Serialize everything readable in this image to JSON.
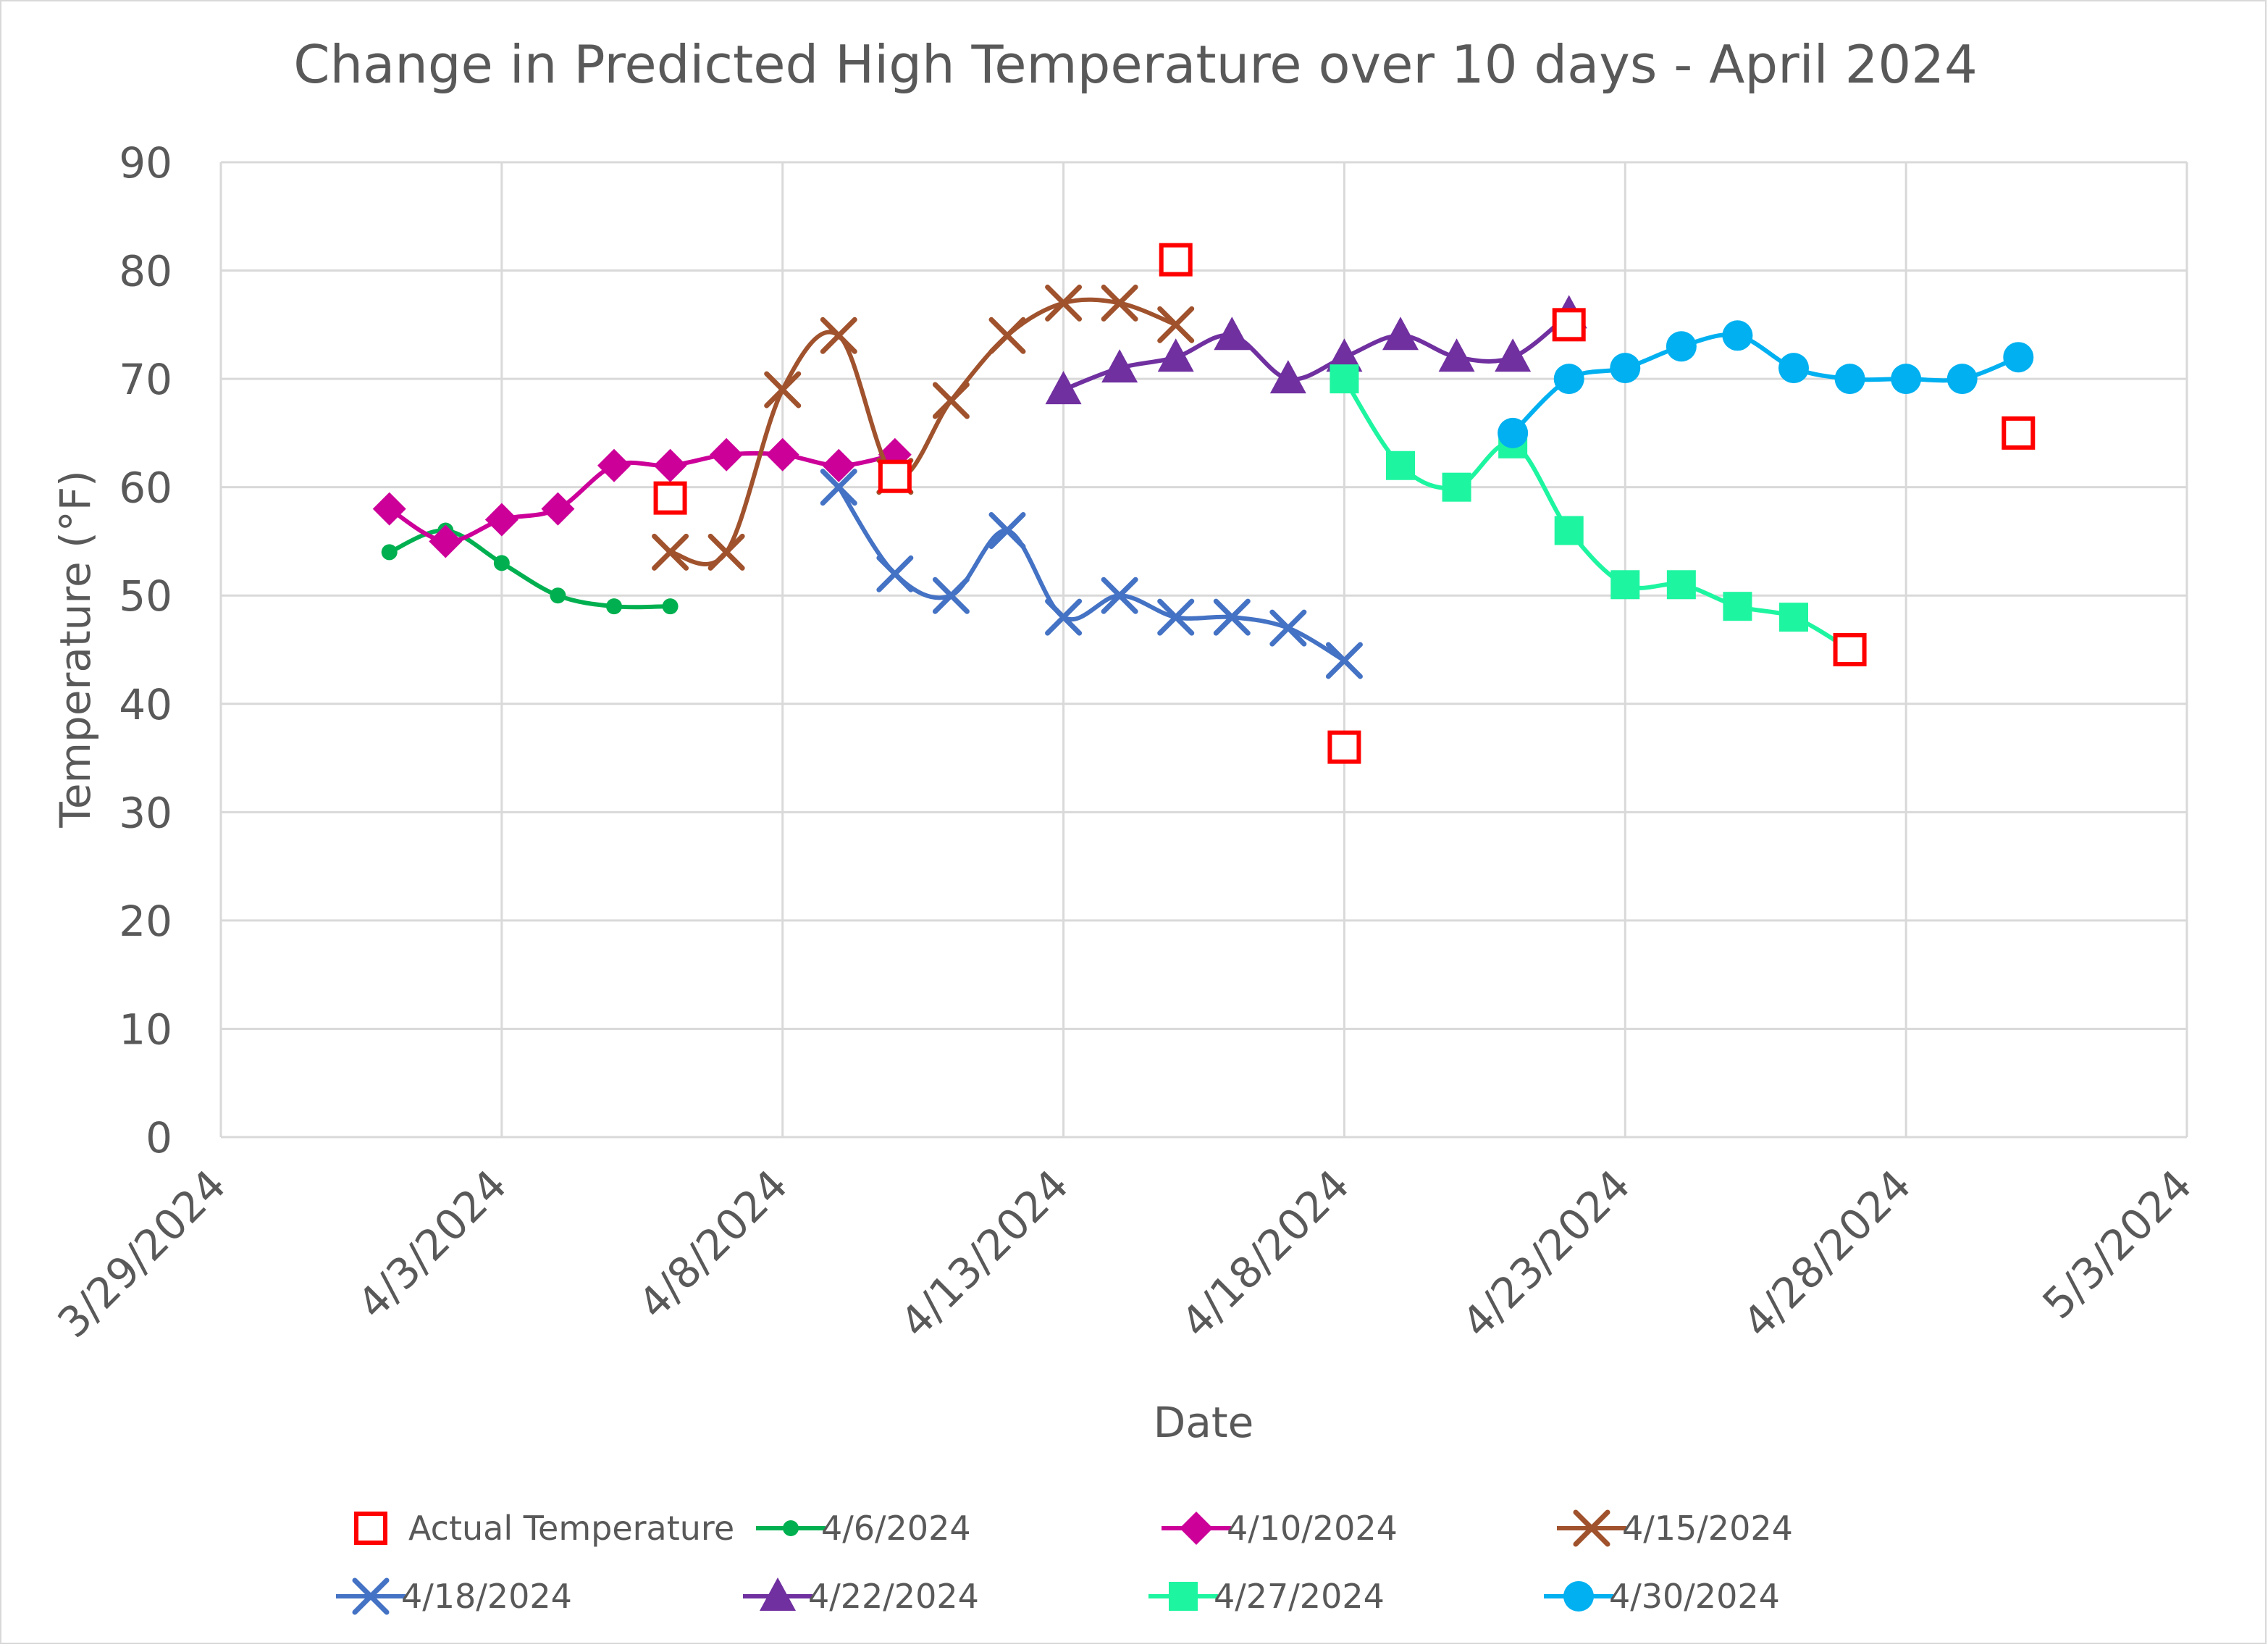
{
  "chart_data": {
    "type": "line",
    "title": "Change in Predicted High Temperature over 10 days - April 2024",
    "xlabel": "Date",
    "ylabel": "Temperature (°F)",
    "ylim": [
      0,
      90
    ],
    "y_ticks": [
      "0",
      "10",
      "20",
      "30",
      "40",
      "50",
      "60",
      "70",
      "80",
      "90"
    ],
    "x_range_days": [
      0,
      35
    ],
    "x_ticks": [
      {
        "day": 0,
        "label": "3/29/2024"
      },
      {
        "day": 5,
        "label": "4/3/2024"
      },
      {
        "day": 10,
        "label": "4/8/2024"
      },
      {
        "day": 15,
        "label": "4/13/2024"
      },
      {
        "day": 20,
        "label": "4/18/2024"
      },
      {
        "day": 25,
        "label": "4/23/2024"
      },
      {
        "day": 30,
        "label": "4/28/2024"
      },
      {
        "day": 35,
        "label": "5/3/2024"
      }
    ],
    "grid": true,
    "legend_position": "bottom",
    "series": [
      {
        "name": "Actual Temperature",
        "color": "#ff0000",
        "marker": "square-open",
        "line": false,
        "x": [
          8,
          12,
          17,
          20,
          24,
          29,
          32
        ],
        "y": [
          59,
          61,
          81,
          36,
          75,
          45,
          65
        ]
      },
      {
        "name": "4/6/2024",
        "color": "#00b050",
        "marker": "circle-small",
        "line": true,
        "x": [
          3,
          4,
          5,
          6,
          7,
          8
        ],
        "y": [
          54,
          56,
          53,
          50,
          49,
          49
        ]
      },
      {
        "name": "4/10/2024",
        "color": "#cc0099",
        "marker": "diamond",
        "line": true,
        "x": [
          3,
          4,
          5,
          6,
          7,
          8,
          9,
          10,
          11,
          12
        ],
        "y": [
          58,
          55,
          57,
          58,
          62,
          62,
          63,
          63,
          62,
          63
        ]
      },
      {
        "name": "4/15/2024",
        "color": "#a0522d",
        "marker": "x",
        "line": true,
        "x": [
          8,
          9,
          10,
          11,
          12,
          13,
          14,
          15,
          16,
          17
        ],
        "y": [
          54,
          54,
          69,
          74,
          61,
          68,
          74,
          77,
          77,
          75
        ]
      },
      {
        "name": "4/18/2024",
        "color": "#4472c4",
        "marker": "x",
        "line": true,
        "x": [
          11,
          12,
          13,
          14,
          15,
          16,
          17,
          18,
          19,
          20
        ],
        "y": [
          60,
          52,
          50,
          56,
          48,
          50,
          48,
          48,
          47,
          44
        ]
      },
      {
        "name": "4/22/2024",
        "color": "#7030a0",
        "marker": "triangle",
        "line": true,
        "x": [
          15,
          16,
          17,
          18,
          19,
          20,
          21,
          22,
          23,
          24
        ],
        "y": [
          69,
          71,
          72,
          74,
          70,
          72,
          74,
          72,
          72,
          76
        ]
      },
      {
        "name": "4/27/2024",
        "color": "#1ef5a0",
        "marker": "square",
        "line": true,
        "x": [
          20,
          21,
          22,
          23,
          24,
          25,
          26,
          27,
          28,
          29
        ],
        "y": [
          70,
          62,
          60,
          64,
          56,
          51,
          51,
          49,
          48,
          45
        ]
      },
      {
        "name": "4/30/2024",
        "color": "#00b0f0",
        "marker": "circle",
        "line": true,
        "x": [
          23,
          24,
          25,
          26,
          27,
          28,
          29,
          30,
          31,
          32
        ],
        "y": [
          65,
          70,
          71,
          73,
          74,
          71,
          70,
          70,
          70,
          72
        ]
      }
    ]
  }
}
